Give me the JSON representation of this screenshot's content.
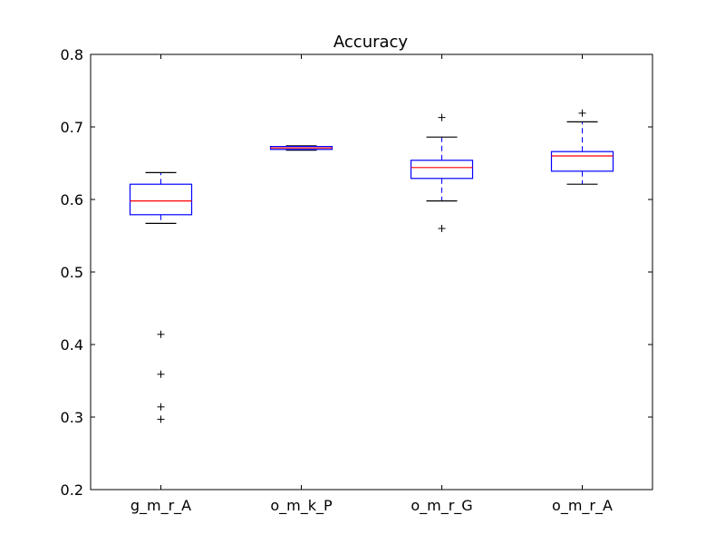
{
  "chart_data": {
    "type": "box",
    "title": "Accuracy",
    "xlabel": "",
    "ylabel": "",
    "ylim": [
      0.2,
      0.8
    ],
    "yticks": [
      0.2,
      0.3,
      0.4,
      0.5,
      0.6,
      0.7,
      0.8
    ],
    "ytick_labels": [
      "0.2",
      "0.3",
      "0.4",
      "0.5",
      "0.6",
      "0.7",
      "0.8"
    ],
    "categories": [
      "g_m_r_A",
      "o_m_k_P",
      "o_m_r_G",
      "o_m_r_A"
    ],
    "boxes": [
      {
        "category": "g_m_r_A",
        "whisker_low": 0.567,
        "q1": 0.579,
        "median": 0.598,
        "q3": 0.621,
        "whisker_high": 0.637,
        "outliers": [
          0.414,
          0.359,
          0.314,
          0.297
        ]
      },
      {
        "category": "o_m_k_P",
        "whisker_low": 0.668,
        "q1": 0.669,
        "median": 0.671,
        "q3": 0.673,
        "whisker_high": 0.674,
        "outliers": []
      },
      {
        "category": "o_m_r_G",
        "whisker_low": 0.598,
        "q1": 0.629,
        "median": 0.644,
        "q3": 0.654,
        "whisker_high": 0.686,
        "outliers": [
          0.713,
          0.56
        ]
      },
      {
        "category": "o_m_r_A",
        "whisker_low": 0.621,
        "q1": 0.639,
        "median": 0.66,
        "q3": 0.666,
        "whisker_high": 0.707,
        "outliers": [
          0.719
        ]
      }
    ],
    "colors": {
      "box": "#0000ff",
      "median": "#ff0000",
      "whisker": "#0000ff",
      "cap": "#000000",
      "outlier": "#000000",
      "axes": "#000000"
    },
    "grid": false,
    "legend": "none"
  }
}
